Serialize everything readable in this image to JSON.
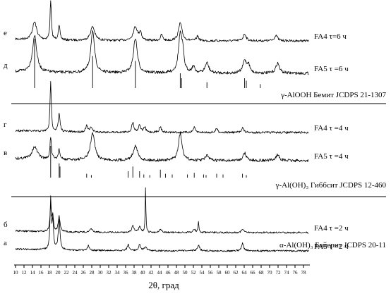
{
  "chart_data": {
    "type": "line",
    "xlabel": "2θ, град",
    "xlim": [
      10,
      80
    ],
    "x_ticks": [
      10,
      12,
      14,
      16,
      18,
      20,
      22,
      24,
      26,
      28,
      30,
      32,
      34,
      36,
      38,
      40,
      42,
      44,
      46,
      48,
      50,
      52,
      54,
      56,
      58,
      60,
      62,
      64,
      66,
      68,
      70,
      72,
      74,
      76,
      78
    ],
    "grid": false,
    "panels": [
      {
        "reference": "γ-AlOOH Бемит JCDPS 21-1307",
        "reference_lines": [
          {
            "x": 14.5,
            "intensity": 1.0
          },
          {
            "x": 28.2,
            "intensity": 0.65
          },
          {
            "x": 38.3,
            "intensity": 0.55
          },
          {
            "x": 48.9,
            "intensity": 0.3
          },
          {
            "x": 49.2,
            "intensity": 0.2
          },
          {
            "x": 55.2,
            "intensity": 0.12
          },
          {
            "x": 64.1,
            "intensity": 0.2
          },
          {
            "x": 64.5,
            "intensity": 0.15
          },
          {
            "x": 67.8,
            "intensity": 0.08
          }
        ],
        "series": [
          {
            "name": "FA4 τ=6 ч",
            "letter": "е",
            "peaks": [
              {
                "x": 14.5,
                "h": 0.45,
                "w": 0.6
              },
              {
                "x": 18.3,
                "h": 1.0,
                "w": 0.18
              },
              {
                "x": 20.3,
                "h": 0.35,
                "w": 0.25
              },
              {
                "x": 28.2,
                "h": 0.35,
                "w": 0.6
              },
              {
                "x": 38.3,
                "h": 0.35,
                "w": 0.6
              },
              {
                "x": 39.5,
                "h": 0.2,
                "w": 0.3
              },
              {
                "x": 48.9,
                "h": 0.45,
                "w": 0.5
              },
              {
                "x": 44.5,
                "h": 0.15,
                "w": 0.3
              },
              {
                "x": 53.0,
                "h": 0.12,
                "w": 0.3
              },
              {
                "x": 64.1,
                "h": 0.18,
                "w": 0.4
              },
              {
                "x": 71.5,
                "h": 0.15,
                "w": 0.4
              }
            ]
          },
          {
            "name": "FA5 τ =6 ч",
            "letter": "д",
            "peaks": [
              {
                "x": 14.5,
                "h": 0.9,
                "w": 0.6
              },
              {
                "x": 28.2,
                "h": 1.0,
                "w": 0.55
              },
              {
                "x": 38.3,
                "h": 0.85,
                "w": 0.55
              },
              {
                "x": 48.9,
                "h": 0.95,
                "w": 0.5
              },
              {
                "x": 49.5,
                "h": 0.35,
                "w": 0.3
              },
              {
                "x": 52.0,
                "h": 0.15,
                "w": 0.4
              },
              {
                "x": 55.2,
                "h": 0.25,
                "w": 0.5
              },
              {
                "x": 64.1,
                "h": 0.3,
                "w": 0.5
              },
              {
                "x": 65.0,
                "h": 0.2,
                "w": 0.4
              },
              {
                "x": 71.9,
                "h": 0.25,
                "w": 0.5
              }
            ]
          }
        ]
      },
      {
        "reference": "γ-Al(OH)₃ Гиббсит JCDPS 12-460",
        "reference_lines": [
          {
            "x": 18.3,
            "intensity": 1.0
          },
          {
            "x": 20.3,
            "intensity": 0.45
          },
          {
            "x": 20.5,
            "intensity": 0.35
          },
          {
            "x": 26.8,
            "intensity": 0.12
          },
          {
            "x": 27.9,
            "intensity": 0.08
          },
          {
            "x": 36.6,
            "intensity": 0.2
          },
          {
            "x": 37.7,
            "intensity": 0.35
          },
          {
            "x": 39.3,
            "intensity": 0.2
          },
          {
            "x": 40.3,
            "intensity": 0.1
          },
          {
            "x": 41.7,
            "intensity": 0.08
          },
          {
            "x": 44.2,
            "intensity": 0.25
          },
          {
            "x": 45.4,
            "intensity": 0.12
          },
          {
            "x": 47.0,
            "intensity": 0.1
          },
          {
            "x": 50.6,
            "intensity": 0.1
          },
          {
            "x": 52.2,
            "intensity": 0.15
          },
          {
            "x": 54.4,
            "intensity": 0.1
          },
          {
            "x": 55.0,
            "intensity": 0.08
          },
          {
            "x": 57.5,
            "intensity": 0.12
          },
          {
            "x": 59.0,
            "intensity": 0.1
          },
          {
            "x": 63.6,
            "intensity": 0.12
          },
          {
            "x": 64.5,
            "intensity": 0.08
          }
        ],
        "series": [
          {
            "name": "FA4 τ =4 ч",
            "letter": "г",
            "peaks": [
              {
                "x": 18.3,
                "h": 1.0,
                "w": 0.18
              },
              {
                "x": 20.3,
                "h": 0.35,
                "w": 0.25
              },
              {
                "x": 26.8,
                "h": 0.12,
                "w": 0.3
              },
              {
                "x": 27.9,
                "h": 0.1,
                "w": 0.3
              },
              {
                "x": 37.7,
                "h": 0.2,
                "w": 0.3
              },
              {
                "x": 39.3,
                "h": 0.15,
                "w": 0.3
              },
              {
                "x": 40.5,
                "h": 0.1,
                "w": 0.3
              },
              {
                "x": 44.2,
                "h": 0.12,
                "w": 0.3
              },
              {
                "x": 52.2,
                "h": 0.1,
                "w": 0.3
              },
              {
                "x": 57.5,
                "h": 0.08,
                "w": 0.3
              },
              {
                "x": 63.6,
                "h": 0.1,
                "w": 0.3
              }
            ]
          },
          {
            "name": "FA5 τ =4 ч",
            "letter": "в",
            "peaks": [
              {
                "x": 14.5,
                "h": 0.25,
                "w": 0.8
              },
              {
                "x": 18.3,
                "h": 0.45,
                "w": 0.2
              },
              {
                "x": 20.3,
                "h": 0.2,
                "w": 0.25
              },
              {
                "x": 28.2,
                "h": 0.55,
                "w": 0.6
              },
              {
                "x": 38.3,
                "h": 0.3,
                "w": 0.6
              },
              {
                "x": 48.9,
                "h": 0.55,
                "w": 0.5
              },
              {
                "x": 55.2,
                "h": 0.1,
                "w": 0.5
              },
              {
                "x": 64.1,
                "h": 0.15,
                "w": 0.5
              },
              {
                "x": 71.9,
                "h": 0.12,
                "w": 0.5
              }
            ]
          }
        ]
      },
      {
        "reference": "α-Al(OH)₃ Байерит JCDPS 20-11",
        "reference_lines": [],
        "series": [
          {
            "name": "FA4 τ =2 ч",
            "letter": "б",
            "peaks": [
              {
                "x": 18.3,
                "h": 0.55,
                "w": 0.2
              },
              {
                "x": 18.8,
                "h": 0.35,
                "w": 0.2
              },
              {
                "x": 20.3,
                "h": 0.35,
                "w": 0.25
              },
              {
                "x": 27.9,
                "h": 0.08,
                "w": 0.3
              },
              {
                "x": 37.7,
                "h": 0.15,
                "w": 0.3
              },
              {
                "x": 39.3,
                "h": 0.12,
                "w": 0.3
              },
              {
                "x": 40.7,
                "h": 1.0,
                "w": 0.1
              },
              {
                "x": 44.2,
                "h": 0.08,
                "w": 0.3
              },
              {
                "x": 52.2,
                "h": 0.08,
                "w": 0.3
              },
              {
                "x": 53.2,
                "h": 0.25,
                "w": 0.12
              },
              {
                "x": 63.6,
                "h": 0.08,
                "w": 0.3
              }
            ]
          },
          {
            "name": "FA5 τ =2 ч",
            "letter": "а",
            "peaks": [
              {
                "x": 18.3,
                "h": 1.0,
                "w": 0.18
              },
              {
                "x": 18.8,
                "h": 0.55,
                "w": 0.2
              },
              {
                "x": 20.3,
                "h": 0.6,
                "w": 0.25
              },
              {
                "x": 27.2,
                "h": 0.1,
                "w": 0.3
              },
              {
                "x": 36.6,
                "h": 0.12,
                "w": 0.3
              },
              {
                "x": 39.3,
                "h": 0.12,
                "w": 0.3
              },
              {
                "x": 40.7,
                "h": 0.08,
                "w": 0.3
              },
              {
                "x": 53.2,
                "h": 0.12,
                "w": 0.3
              },
              {
                "x": 63.6,
                "h": 0.15,
                "w": 0.3
              }
            ]
          }
        ]
      }
    ]
  }
}
